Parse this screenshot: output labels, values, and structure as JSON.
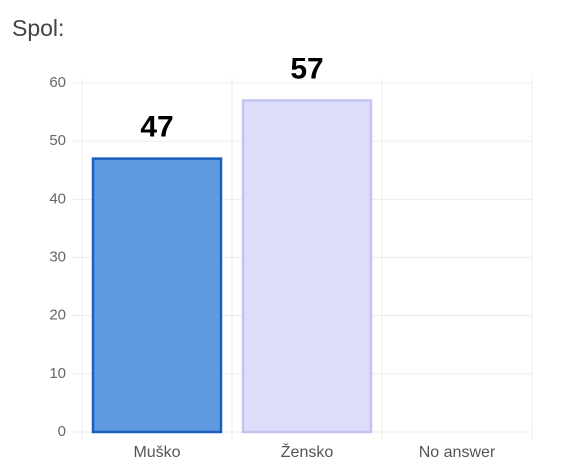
{
  "chart_data": {
    "type": "bar",
    "title": "Spol:",
    "categories": [
      "Muško",
      "Žensko",
      "No answer"
    ],
    "values": [
      47,
      57,
      0
    ],
    "value_labels": [
      "47",
      "57",
      null
    ],
    "colors": [
      "#5f9ae0",
      "#dcdcfb",
      "#1f1f8f"
    ],
    "edge_colors": [
      "#1a5fc0",
      "#c4c4f3",
      "#1f1f8f"
    ],
    "ylim": [
      0,
      60
    ],
    "yticks": [
      0,
      10,
      20,
      30,
      40,
      50,
      60
    ],
    "grid": true
  }
}
